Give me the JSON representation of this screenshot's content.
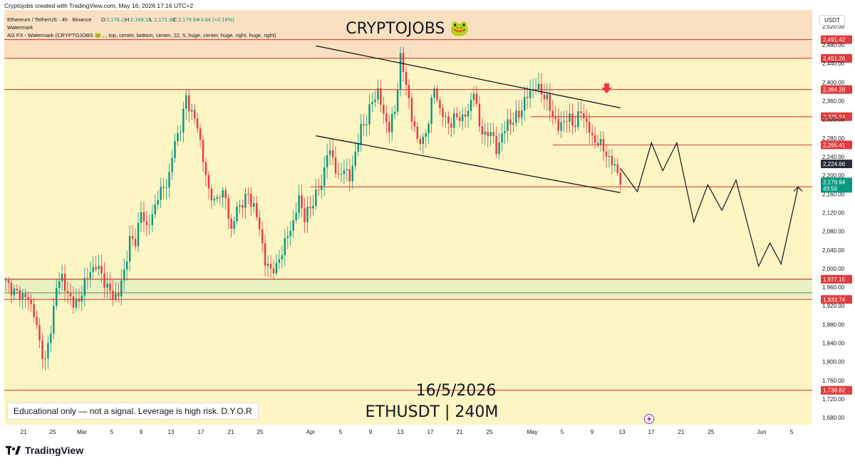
{
  "credit": "Cryptojobs created with TradingView.com, May 16, 2026 17:16 UTC+2",
  "header": {
    "symbol_line": "Ethereum / TetherUS · 4h · Binance",
    "ohlc": [
      {
        "k": "O",
        "v": "2,176.11"
      },
      {
        "k": "H",
        "v": "2,188.16"
      },
      {
        "k": "L",
        "v": "2,172.30"
      },
      {
        "k": "C",
        "v": "2,179.94"
      }
    ],
    "change": "+3.84 (+0.18%)",
    "line2": "Watermark",
    "line3": "AG FX - Watermark (CRYPTOJOBS 🐸 , , top, center, bottom, center, 22, 5, huge, center, huge, right, huge, right)"
  },
  "currency": "USDT",
  "watermark_top": "CRYPTOJOBS 🐸",
  "watermark_date": "16/5/2026",
  "watermark_pair": "ETHUSDT | 240M",
  "disclaimer": "Educational only — not a signal. Leverage is high risk. D.Y.O.R",
  "brand": "TradingView",
  "colors": {
    "background": "#fdf5c3",
    "zone_top": "#f9dcbf",
    "zone_bottom": "#e9f1c2",
    "level_line": "#e23b3b",
    "zone_line": "#4c7d2f",
    "up": "#089981",
    "down": "#f23645",
    "price_label": "#089981",
    "last_label": "#2a2e39"
  },
  "chart_data": {
    "type": "candlestick",
    "timeframe": "4h",
    "x_ticks": [
      "21",
      "25",
      "Mar",
      "5",
      "9",
      "13",
      "17",
      "21",
      "25",
      "Apr",
      "5",
      "9",
      "13",
      "17",
      "21",
      "25",
      "May",
      "5",
      "9",
      "13",
      "17",
      "21",
      "25",
      "Jun",
      "5"
    ],
    "y_ticks": [
      1680,
      1720,
      1760,
      1800,
      1840,
      1880,
      1920,
      1960,
      2000,
      2040,
      2080,
      2120,
      2160,
      2200,
      2240,
      2280,
      2320,
      2360,
      2400,
      2440,
      2480,
      2520
    ],
    "ylim": [
      1665,
      2555
    ],
    "levels": [
      {
        "label": "2,491.42",
        "value": 2491.42
      },
      {
        "label": "2,451.26",
        "value": 2451.26
      },
      {
        "label": "2,384.28",
        "value": 2384.28
      },
      {
        "label": "2,325.94",
        "value": 2325.94
      },
      {
        "label": "2,265.41",
        "value": 2265.41
      },
      {
        "label": "2,175.42",
        "value": 2175.42
      },
      {
        "label": "1,977.15",
        "value": 1977.15
      },
      {
        "label": "1,933.74",
        "value": 1933.74
      },
      {
        "label": "1,738.82",
        "value": 1738.82
      }
    ],
    "last_close": {
      "label": "2,224.66",
      "value": 2224.66
    },
    "current_price": {
      "label": "2,179.94",
      "value": 2179.94,
      "countdown": "43:56"
    },
    "resistance_zone": [
      2451.26,
      2555
    ],
    "support_zone": [
      1933.74,
      1977.15
    ],
    "trendline_upper": [
      {
        "x": 110,
        "y": 2478
      },
      {
        "x": 218,
        "y": 2345
      }
    ],
    "trendline_lower": [
      {
        "x": 110,
        "y": 2285
      },
      {
        "x": 218,
        "y": 2163
      }
    ],
    "close_path": [
      [
        0,
        1970
      ],
      [
        3,
        1950
      ],
      [
        5,
        1945
      ],
      [
        8,
        1935
      ],
      [
        10,
        1905
      ],
      [
        12,
        1840
      ],
      [
        14,
        1800
      ],
      [
        16,
        1870
      ],
      [
        18,
        1960
      ],
      [
        20,
        1985
      ],
      [
        22,
        1940
      ],
      [
        24,
        1930
      ],
      [
        26,
        1925
      ],
      [
        28,
        1975
      ],
      [
        30,
        1990
      ],
      [
        32,
        2010
      ],
      [
        34,
        1985
      ],
      [
        36,
        1960
      ],
      [
        38,
        1940
      ],
      [
        40,
        1945
      ],
      [
        42,
        1995
      ],
      [
        44,
        2060
      ],
      [
        46,
        2060
      ],
      [
        48,
        2120
      ],
      [
        50,
        2090
      ],
      [
        52,
        2110
      ],
      [
        54,
        2160
      ],
      [
        56,
        2170
      ],
      [
        58,
        2200
      ],
      [
        60,
        2275
      ],
      [
        62,
        2300
      ],
      [
        64,
        2370
      ],
      [
        66,
        2330
      ],
      [
        68,
        2310
      ],
      [
        70,
        2230
      ],
      [
        72,
        2170
      ],
      [
        74,
        2140
      ],
      [
        76,
        2165
      ],
      [
        78,
        2150
      ],
      [
        80,
        2080
      ],
      [
        82,
        2130
      ],
      [
        84,
        2140
      ],
      [
        86,
        2160
      ],
      [
        88,
        2130
      ],
      [
        90,
        2090
      ],
      [
        92,
        2010
      ],
      [
        94,
        2000
      ],
      [
        96,
        2000
      ],
      [
        98,
        2040
      ],
      [
        100,
        2070
      ],
      [
        102,
        2100
      ],
      [
        104,
        2150
      ],
      [
        106,
        2110
      ],
      [
        108,
        2130
      ],
      [
        110,
        2160
      ],
      [
        112,
        2180
      ],
      [
        114,
        2250
      ],
      [
        116,
        2240
      ],
      [
        118,
        2190
      ],
      [
        120,
        2220
      ],
      [
        122,
        2190
      ],
      [
        124,
        2250
      ],
      [
        126,
        2300
      ],
      [
        128,
        2320
      ],
      [
        130,
        2360
      ],
      [
        132,
        2380
      ],
      [
        134,
        2330
      ],
      [
        136,
        2300
      ],
      [
        138,
        2340
      ],
      [
        140,
        2450
      ],
      [
        142,
        2400
      ],
      [
        144,
        2320
      ],
      [
        146,
        2280
      ],
      [
        148,
        2270
      ],
      [
        150,
        2320
      ],
      [
        152,
        2390
      ],
      [
        154,
        2340
      ],
      [
        156,
        2320
      ],
      [
        158,
        2310
      ],
      [
        160,
        2330
      ],
      [
        162,
        2320
      ],
      [
        164,
        2340
      ],
      [
        166,
        2380
      ],
      [
        168,
        2310
      ],
      [
        170,
        2280
      ],
      [
        172,
        2300
      ],
      [
        174,
        2250
      ],
      [
        176,
        2290
      ],
      [
        178,
        2310
      ],
      [
        180,
        2320
      ],
      [
        182,
        2330
      ],
      [
        184,
        2360
      ],
      [
        186,
        2380
      ],
      [
        188,
        2390
      ],
      [
        190,
        2380
      ],
      [
        192,
        2360
      ],
      [
        194,
        2330
      ],
      [
        196,
        2300
      ],
      [
        198,
        2320
      ],
      [
        200,
        2320
      ],
      [
        202,
        2310
      ],
      [
        204,
        2340
      ],
      [
        206,
        2310
      ],
      [
        208,
        2280
      ],
      [
        210,
        2270
      ],
      [
        212,
        2260
      ],
      [
        214,
        2230
      ],
      [
        216,
        2225
      ],
      [
        218,
        2180
      ]
    ],
    "projection": [
      [
        218,
        2215
      ],
      [
        224,
        2165
      ],
      [
        229,
        2270
      ],
      [
        233,
        2210
      ],
      [
        238,
        2270
      ],
      [
        244,
        2100
      ],
      [
        249,
        2180
      ],
      [
        254,
        2125
      ],
      [
        259,
        2190
      ],
      [
        267,
        2005
      ],
      [
        271,
        2055
      ],
      [
        275,
        2010
      ],
      [
        281,
        2175
      ]
    ]
  }
}
